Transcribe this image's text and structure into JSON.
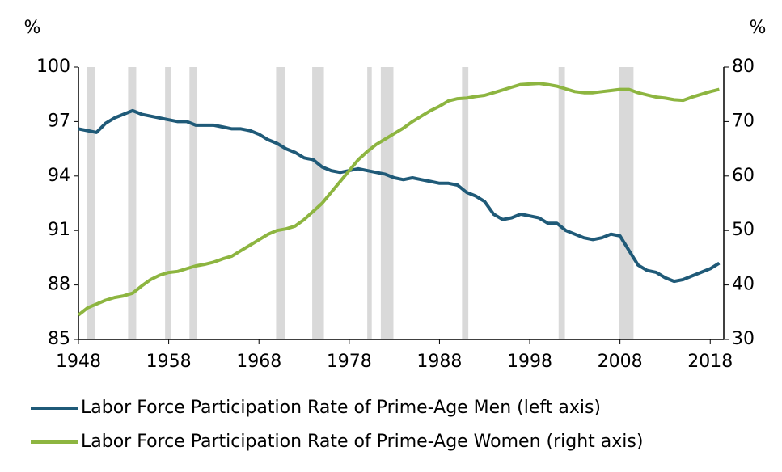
{
  "chart_data": {
    "type": "line",
    "y_label": "%",
    "y2_label": "%",
    "x": [
      1948,
      1949,
      1950,
      1951,
      1952,
      1953,
      1954,
      1955,
      1956,
      1957,
      1958,
      1959,
      1960,
      1961,
      1962,
      1963,
      1964,
      1965,
      1966,
      1967,
      1968,
      1969,
      1970,
      1971,
      1972,
      1973,
      1974,
      1975,
      1976,
      1977,
      1978,
      1979,
      1980,
      1981,
      1982,
      1983,
      1984,
      1985,
      1986,
      1987,
      1988,
      1989,
      1990,
      1991,
      1992,
      1993,
      1994,
      1995,
      1996,
      1997,
      1998,
      1999,
      2000,
      2001,
      2002,
      2003,
      2004,
      2005,
      2006,
      2007,
      2008,
      2009,
      2010,
      2011,
      2012,
      2013,
      2014,
      2015,
      2016,
      2017,
      2018,
      2019
    ],
    "series": [
      {
        "name": "Labor Force Participation Rate of Prime-Age Men (left axis)",
        "color": "#1f5a78",
        "values": [
          96.6,
          96.5,
          96.4,
          96.9,
          97.2,
          97.4,
          97.6,
          97.4,
          97.3,
          97.2,
          97.1,
          97.0,
          97.0,
          96.8,
          96.8,
          96.8,
          96.7,
          96.6,
          96.6,
          96.5,
          96.3,
          96.0,
          95.8,
          95.5,
          95.3,
          95.0,
          94.9,
          94.5,
          94.3,
          94.2,
          94.3,
          94.4,
          94.3,
          94.2,
          94.1,
          93.9,
          93.8,
          93.9,
          93.8,
          93.7,
          93.6,
          93.6,
          93.5,
          93.1,
          92.9,
          92.6,
          91.9,
          91.6,
          91.7,
          91.9,
          91.8,
          91.7,
          91.4,
          91.4,
          91.0,
          90.8,
          90.6,
          90.5,
          90.6,
          90.8,
          90.7,
          89.9,
          89.1,
          88.8,
          88.7,
          88.4,
          88.2,
          88.3,
          88.5,
          88.7,
          88.9,
          89.2
        ]
      },
      {
        "name": "Labor Force Participation Rate of Prime-Age Women (right axis)",
        "color": "#8db540",
        "axis": "y2",
        "values": [
          34.5,
          35.8,
          36.5,
          37.2,
          37.7,
          38.0,
          38.5,
          39.8,
          41.0,
          41.8,
          42.3,
          42.5,
          43.0,
          43.5,
          43.8,
          44.2,
          44.8,
          45.3,
          46.3,
          47.3,
          48.3,
          49.3,
          50.0,
          50.3,
          50.8,
          52.0,
          53.5,
          55.0,
          57.0,
          59.0,
          61.0,
          63.0,
          64.5,
          65.8,
          66.8,
          67.8,
          68.8,
          70.0,
          71.0,
          72.0,
          72.8,
          73.8,
          74.2,
          74.3,
          74.6,
          74.8,
          75.3,
          75.8,
          76.3,
          76.8,
          76.9,
          77.0,
          76.8,
          76.5,
          76.0,
          75.5,
          75.3,
          75.3,
          75.5,
          75.7,
          75.9,
          75.9,
          75.3,
          74.9,
          74.5,
          74.3,
          74.0,
          73.9,
          74.5,
          75.0,
          75.5,
          75.9
        ]
      }
    ],
    "recessions": [
      [
        1948.9,
        1949.8
      ],
      [
        1953.5,
        1954.4
      ],
      [
        1957.6,
        1958.3
      ],
      [
        1960.3,
        1961.1
      ],
      [
        1969.9,
        1970.9
      ],
      [
        1973.9,
        1975.2
      ],
      [
        1980.0,
        1980.5
      ],
      [
        1981.5,
        1982.9
      ],
      [
        1990.5,
        1991.2
      ],
      [
        2001.2,
        2001.9
      ],
      [
        2007.9,
        2009.5
      ]
    ],
    "recession_color": "#d9d9d9",
    "xlim": [
      1948,
      2019.5
    ],
    "xticks": [
      1948,
      1958,
      1968,
      1978,
      1988,
      1998,
      2008,
      2018
    ],
    "ylim": [
      85,
      100
    ],
    "yticks": [
      85,
      88,
      91,
      94,
      97,
      100
    ],
    "y2lim": [
      30,
      80
    ],
    "y2ticks": [
      30,
      40,
      50,
      60,
      70,
      80
    ]
  }
}
